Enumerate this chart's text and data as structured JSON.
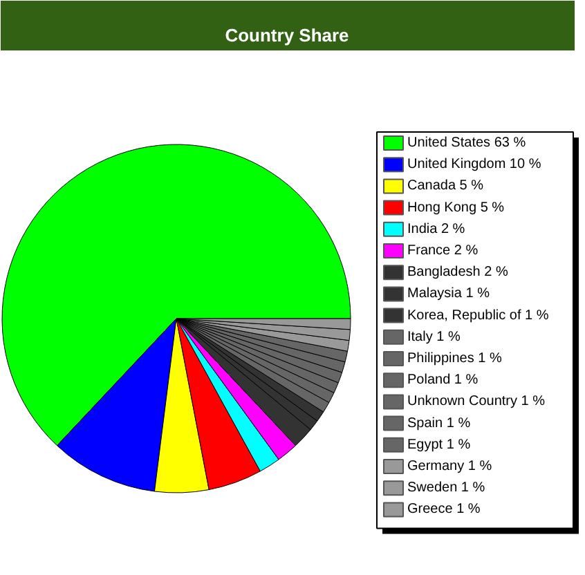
{
  "chart_data": {
    "type": "pie",
    "title": "Country Share",
    "categories": [
      "United States",
      "United Kingdom",
      "Canada",
      "Hong Kong",
      "India",
      "France",
      "Bangladesh",
      "Malaysia",
      "Korea, Republic of",
      "Italy",
      "Philippines",
      "Poland",
      "Unknown Country",
      "Spain",
      "Egypt",
      "Germany",
      "Sweden",
      "Greece"
    ],
    "values": [
      63,
      10,
      5,
      5,
      2,
      2,
      2,
      1,
      1,
      1,
      1,
      1,
      1,
      1,
      1,
      1,
      1,
      1
    ],
    "value_labels": [
      "63 %",
      "10 %",
      "5 %",
      "5 %",
      "2 %",
      "2 %",
      "2 %",
      "1 %",
      "1 %",
      "1 %",
      "1 %",
      "1 %",
      "1 %",
      "1 %",
      "1 %",
      "1 %",
      "1 %",
      "1 %"
    ],
    "colors": [
      "#00ff00",
      "#0000ff",
      "#ffff00",
      "#ff0000",
      "#00ffff",
      "#ff00ff",
      "#333333",
      "#333333",
      "#333333",
      "#666666",
      "#666666",
      "#666666",
      "#666666",
      "#666666",
      "#666666",
      "#999999",
      "#999999",
      "#999999"
    ],
    "legend": "right"
  }
}
